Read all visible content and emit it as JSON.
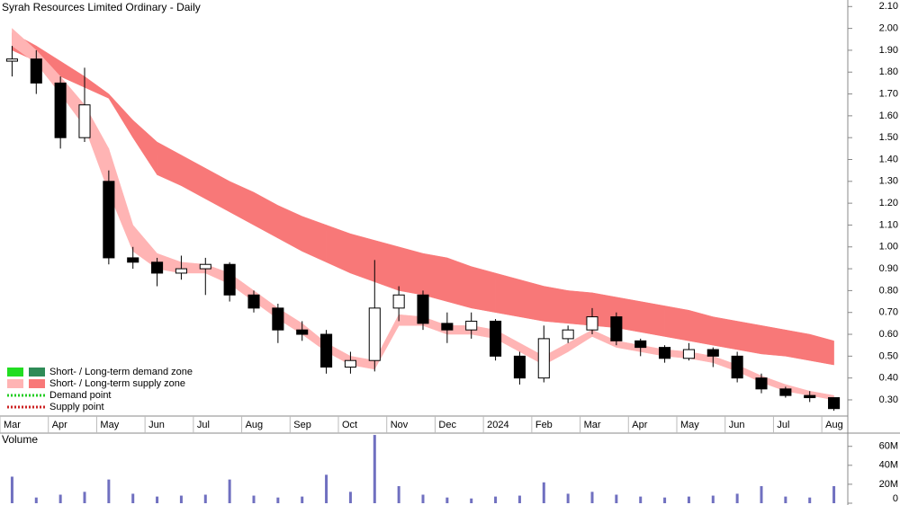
{
  "chart_data": [
    {
      "type": "candlestick",
      "title": "Syrah Resources Limited Ordinary - Daily",
      "categories": [
        "Mar",
        null,
        "Apr",
        null,
        "May",
        null,
        "Jun",
        null,
        "Jul",
        null,
        "Aug",
        null,
        "Sep",
        null,
        "Oct",
        null,
        "Nov",
        null,
        "Dec",
        null,
        "2024",
        null,
        "Feb",
        null,
        "Mar",
        null,
        "Apr",
        null,
        "May",
        null,
        "Jun",
        null,
        "Jul",
        null,
        "Aug"
      ],
      "open": [
        1.85,
        1.86,
        1.75,
        1.5,
        1.3,
        0.95,
        0.93,
        0.88,
        0.9,
        0.92,
        0.78,
        0.72,
        0.62,
        0.6,
        0.45,
        0.48,
        0.72,
        0.78,
        0.65,
        0.62,
        0.66,
        0.5,
        0.4,
        0.58,
        0.62,
        0.68,
        0.57,
        0.54,
        0.49,
        0.53,
        0.5,
        0.4,
        0.35,
        0.32,
        0.31
      ],
      "high": [
        1.92,
        1.9,
        1.78,
        1.82,
        1.35,
        1.0,
        0.95,
        0.96,
        0.95,
        0.93,
        0.8,
        0.74,
        0.66,
        0.62,
        0.52,
        0.94,
        0.82,
        0.8,
        0.7,
        0.7,
        0.67,
        0.52,
        0.64,
        0.64,
        0.72,
        0.7,
        0.58,
        0.55,
        0.56,
        0.54,
        0.52,
        0.42,
        0.36,
        0.34,
        0.31
      ],
      "low": [
        1.78,
        1.7,
        1.45,
        1.48,
        0.92,
        0.9,
        0.82,
        0.85,
        0.78,
        0.75,
        0.7,
        0.56,
        0.57,
        0.42,
        0.42,
        0.43,
        0.66,
        0.62,
        0.56,
        0.58,
        0.48,
        0.37,
        0.38,
        0.56,
        0.6,
        0.55,
        0.5,
        0.47,
        0.48,
        0.45,
        0.38,
        0.33,
        0.31,
        0.29,
        0.25
      ],
      "close": [
        1.86,
        1.75,
        1.5,
        1.65,
        0.95,
        0.93,
        0.88,
        0.9,
        0.92,
        0.78,
        0.72,
        0.62,
        0.6,
        0.45,
        0.48,
        0.72,
        0.78,
        0.65,
        0.62,
        0.66,
        0.5,
        0.4,
        0.58,
        0.62,
        0.68,
        0.57,
        0.54,
        0.49,
        0.53,
        0.5,
        0.4,
        0.35,
        0.32,
        0.31,
        0.26
      ],
      "bands": [
        {
          "name": "Long-term supply zone",
          "color": "#f87878",
          "upper": [
            1.98,
            1.92,
            1.85,
            1.78,
            1.7,
            1.58,
            1.48,
            1.42,
            1.36,
            1.3,
            1.25,
            1.19,
            1.14,
            1.1,
            1.06,
            1.03,
            1.0,
            0.97,
            0.95,
            0.91,
            0.88,
            0.85,
            0.82,
            0.8,
            0.79,
            0.77,
            0.75,
            0.73,
            0.71,
            0.68,
            0.66,
            0.64,
            0.62,
            0.6,
            0.57
          ],
          "lower": [
            1.9,
            1.85,
            1.78,
            1.73,
            1.68,
            1.5,
            1.33,
            1.28,
            1.22,
            1.16,
            1.1,
            1.04,
            0.98,
            0.93,
            0.88,
            0.84,
            0.8,
            0.78,
            0.75,
            0.72,
            0.7,
            0.68,
            0.66,
            0.65,
            0.64,
            0.63,
            0.61,
            0.59,
            0.57,
            0.55,
            0.53,
            0.51,
            0.5,
            0.48,
            0.46
          ]
        },
        {
          "name": "Short-term supply zone",
          "color": "#ffb4b4",
          "upper": [
            2.0,
            1.9,
            1.78,
            1.65,
            1.45,
            1.1,
            0.97,
            0.93,
            0.92,
            0.88,
            0.8,
            0.72,
            0.65,
            0.56,
            0.5,
            0.48,
            0.69,
            0.68,
            0.64,
            0.64,
            0.62,
            0.56,
            0.5,
            0.56,
            0.62,
            0.57,
            0.55,
            0.53,
            0.52,
            0.5,
            0.46,
            0.41,
            0.37,
            0.34,
            0.32
          ],
          "lower": [
            1.92,
            1.84,
            1.7,
            1.55,
            1.25,
            0.98,
            0.9,
            0.88,
            0.88,
            0.83,
            0.75,
            0.67,
            0.6,
            0.52,
            0.46,
            0.44,
            0.64,
            0.64,
            0.6,
            0.6,
            0.58,
            0.52,
            0.46,
            0.52,
            0.59,
            0.54,
            0.52,
            0.5,
            0.49,
            0.47,
            0.43,
            0.38,
            0.34,
            0.32,
            0.3
          ]
        }
      ],
      "ylim": [
        0.23,
        2.13
      ],
      "yticks": [
        {
          "value": 0.3,
          "label": "0.30"
        },
        {
          "value": 0.4,
          "label": "0.40"
        },
        {
          "value": 0.5,
          "label": "0.50"
        },
        {
          "value": 0.6,
          "label": "0.60"
        },
        {
          "value": 0.7,
          "label": "0.70"
        },
        {
          "value": 0.8,
          "label": "0.80"
        },
        {
          "value": 0.9,
          "label": "0.90"
        },
        {
          "value": 1.0,
          "label": "1.00"
        },
        {
          "value": 1.1,
          "label": "1.10"
        },
        {
          "value": 1.2,
          "label": "1.20"
        },
        {
          "value": 1.3,
          "label": "1.30"
        },
        {
          "value": 1.4,
          "label": "1.40"
        },
        {
          "value": 1.5,
          "label": "1.50"
        },
        {
          "value": 1.6,
          "label": "1.60"
        },
        {
          "value": 1.7,
          "label": "1.70"
        },
        {
          "value": 1.8,
          "label": "1.80"
        },
        {
          "value": 1.9,
          "label": "1.90"
        },
        {
          "value": 2.0,
          "label": "2.00"
        },
        {
          "value": 2.1,
          "label": "2.10"
        }
      ],
      "legend": [
        {
          "label": "Short- / Long-term demand zone",
          "colors": [
            "#22dd22",
            "#2e8b57"
          ]
        },
        {
          "label": "Short- / Long-term supply zone",
          "colors": [
            "#ffb4b4",
            "#f87878"
          ]
        },
        {
          "label": "Demand point",
          "colors": [
            "#22cc22"
          ]
        },
        {
          "label": "Supply point",
          "colors": [
            "#cc2222"
          ]
        }
      ]
    },
    {
      "type": "bar",
      "title": "Volume",
      "color": "#7070c0",
      "values": [
        28000000,
        6000000,
        9000000,
        12000000,
        25000000,
        10000000,
        7000000,
        8000000,
        9000000,
        25000000,
        8000000,
        6000000,
        7000000,
        30000000,
        12000000,
        72000000,
        18000000,
        9000000,
        6000000,
        5000000,
        7000000,
        8000000,
        22000000,
        10000000,
        12000000,
        9000000,
        7000000,
        6000000,
        7000000,
        8000000,
        10000000,
        18000000,
        7000000,
        6000000,
        18000000
      ],
      "ylim": [
        0,
        73000000
      ],
      "yticks": [
        0,
        {
          "value": 20000000,
          "label": "20M"
        },
        {
          "value": 40000000,
          "label": "40M"
        },
        {
          "value": 60000000,
          "label": "60M"
        }
      ]
    }
  ]
}
